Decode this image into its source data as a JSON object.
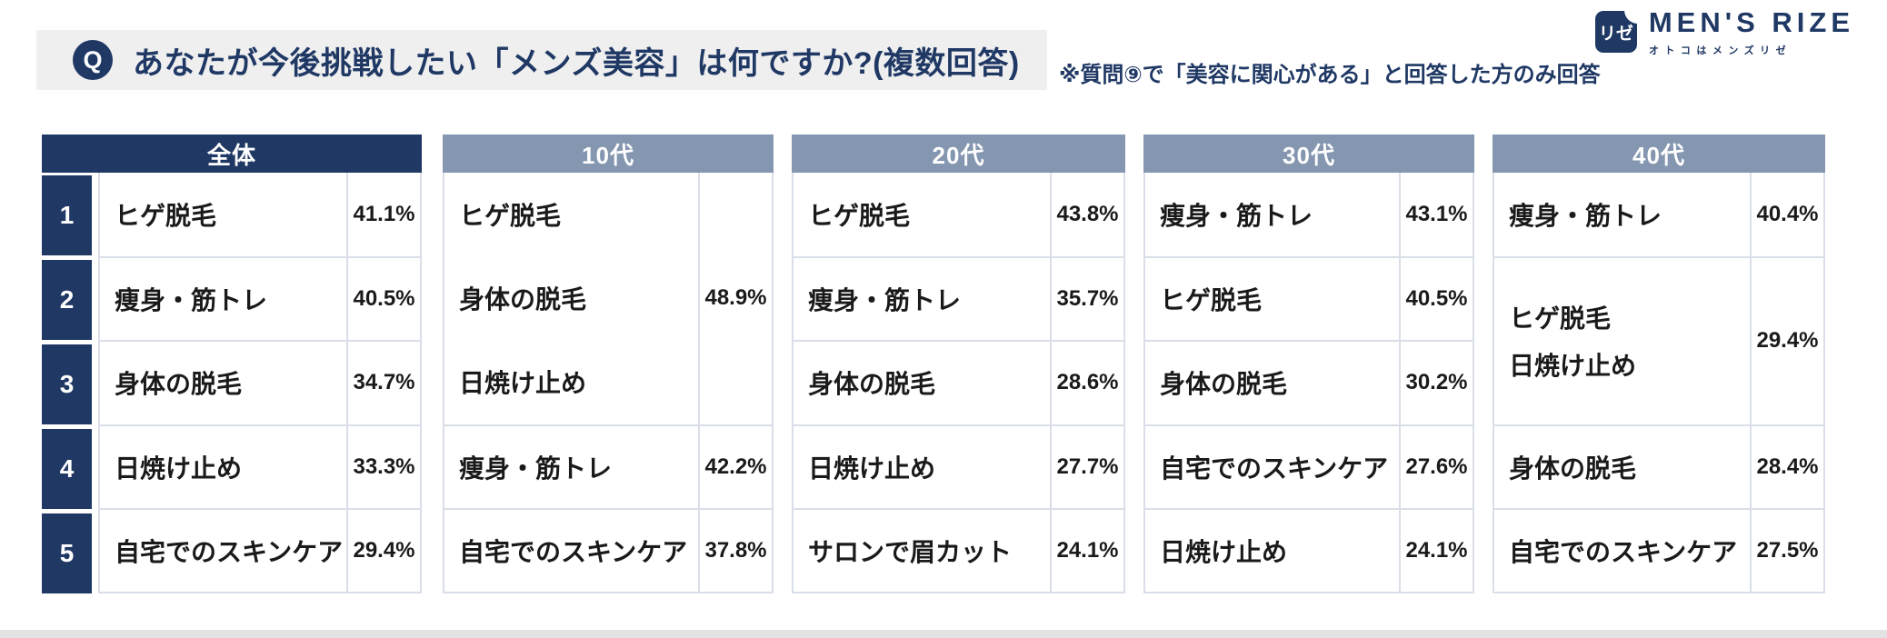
{
  "header": {
    "q_badge": "Q",
    "question": "あなたが今後挑戦したい「メンズ美容」は何ですか?(複数回答)",
    "note": "※質問⑨で「美容に関心がある」と回答した方のみ回答"
  },
  "logo": {
    "icon_text": "リゼ",
    "brand": "MEN'S RIZE",
    "tagline": "オトコはメンズリゼ"
  },
  "chart_data": {
    "type": "table",
    "title": "あなたが今後挑戦したい「メンズ美容」は何ですか?(複数回答)",
    "note": "※質問⑨で「美容に関心がある」と回答した方のみ回答",
    "groups": [
      {
        "label": "全体",
        "header_color": "#1F3864",
        "ranked": true,
        "rows": [
          {
            "rank": "1",
            "items": [
              "ヒゲ脱毛"
            ],
            "value": "41.1%",
            "row_span": 1
          },
          {
            "rank": "2",
            "items": [
              "痩身・筋トレ"
            ],
            "value": "40.5%",
            "row_span": 1
          },
          {
            "rank": "3",
            "items": [
              "身体の脱毛"
            ],
            "value": "34.7%",
            "row_span": 1
          },
          {
            "rank": "4",
            "items": [
              "日焼け止め"
            ],
            "value": "33.3%",
            "row_span": 1
          },
          {
            "rank": "5",
            "items": [
              "自宅でのスキンケア"
            ],
            "value": "29.4%",
            "row_span": 1
          }
        ]
      },
      {
        "label": "10代",
        "header_color": "#8496B0",
        "ranked": false,
        "rows": [
          {
            "items": [
              "ヒゲ脱毛",
              "身体の脱毛",
              "日焼け止め"
            ],
            "value": "48.9%",
            "row_span": 3
          },
          {
            "items": [
              "痩身・筋トレ"
            ],
            "value": "42.2%",
            "row_span": 1
          },
          {
            "items": [
              "自宅でのスキンケア"
            ],
            "value": "37.8%",
            "row_span": 1
          }
        ]
      },
      {
        "label": "20代",
        "header_color": "#8496B0",
        "ranked": false,
        "rows": [
          {
            "items": [
              "ヒゲ脱毛"
            ],
            "value": "43.8%",
            "row_span": 1
          },
          {
            "items": [
              "痩身・筋トレ"
            ],
            "value": "35.7%",
            "row_span": 1
          },
          {
            "items": [
              "身体の脱毛"
            ],
            "value": "28.6%",
            "row_span": 1
          },
          {
            "items": [
              "日焼け止め"
            ],
            "value": "27.7%",
            "row_span": 1
          },
          {
            "items": [
              "サロンで眉カット"
            ],
            "value": "24.1%",
            "row_span": 1
          }
        ]
      },
      {
        "label": "30代",
        "header_color": "#8496B0",
        "ranked": false,
        "rows": [
          {
            "items": [
              "痩身・筋トレ"
            ],
            "value": "43.1%",
            "row_span": 1
          },
          {
            "items": [
              "ヒゲ脱毛"
            ],
            "value": "40.5%",
            "row_span": 1
          },
          {
            "items": [
              "身体の脱毛"
            ],
            "value": "30.2%",
            "row_span": 1
          },
          {
            "items": [
              "自宅でのスキンケア"
            ],
            "value": "27.6%",
            "row_span": 1
          },
          {
            "items": [
              "日焼け止め"
            ],
            "value": "24.1%",
            "row_span": 1
          }
        ]
      },
      {
        "label": "40代",
        "header_color": "#8496B0",
        "ranked": false,
        "rows": [
          {
            "items": [
              "痩身・筋トレ"
            ],
            "value": "40.4%",
            "row_span": 1
          },
          {
            "items": [
              "ヒゲ脱毛",
              "日焼け止め"
            ],
            "value": "29.4%",
            "row_span": 2
          },
          {
            "items": [
              "身体の脱毛"
            ],
            "value": "28.4%",
            "row_span": 1
          },
          {
            "items": [
              "自宅でのスキンケア"
            ],
            "value": "27.5%",
            "row_span": 1
          }
        ]
      }
    ]
  },
  "colors": {
    "navy": "#1F3864",
    "age_header": "#8496B0",
    "question_bar": "#EFEFEF",
    "cell_border": "#D9DEE8",
    "footer_bar": "#E3E3E3",
    "item_text": "#1A1A1A"
  }
}
